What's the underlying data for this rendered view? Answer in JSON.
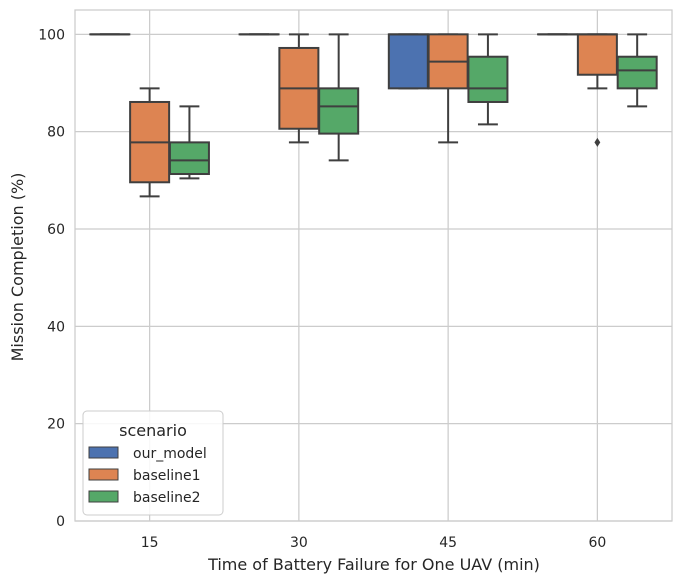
{
  "chart_data": {
    "type": "box",
    "xlabel": "Time of Battery Failure for One UAV (min)",
    "ylabel": "Mission Completion (%)",
    "categories": [
      "15",
      "30",
      "45",
      "60"
    ],
    "ylim": [
      0,
      105
    ],
    "yticks": [
      0,
      20,
      40,
      60,
      80,
      100
    ],
    "grid": true,
    "legend": {
      "title": "scenario",
      "position": "bottom-left"
    },
    "series": [
      {
        "name": "our_model",
        "color": "#4c72b0",
        "boxes": [
          {
            "whislo": 100,
            "q1": 100,
            "med": 100,
            "q3": 100,
            "whishi": 100,
            "fliers": []
          },
          {
            "whislo": 100,
            "q1": 100,
            "med": 100,
            "q3": 100,
            "whishi": 100,
            "fliers": []
          },
          {
            "whislo": 88.9,
            "q1": 88.9,
            "med": 100,
            "q3": 100,
            "whishi": 100,
            "fliers": []
          },
          {
            "whislo": 100,
            "q1": 100,
            "med": 100,
            "q3": 100,
            "whishi": 100,
            "fliers": []
          }
        ]
      },
      {
        "name": "baseline1",
        "color": "#dd8452",
        "boxes": [
          {
            "whislo": 66.7,
            "q1": 69.6,
            "med": 77.8,
            "q3": 86.1,
            "whishi": 88.9,
            "fliers": []
          },
          {
            "whislo": 77.8,
            "q1": 80.6,
            "med": 88.9,
            "q3": 97.2,
            "whishi": 100,
            "fliers": []
          },
          {
            "whislo": 77.8,
            "q1": 88.9,
            "med": 94.4,
            "q3": 100,
            "whishi": 100,
            "fliers": []
          },
          {
            "whislo": 88.9,
            "q1": 91.7,
            "med": 100,
            "q3": 100,
            "whishi": 100,
            "fliers": [
              77.8
            ]
          }
        ]
      },
      {
        "name": "baseline2",
        "color": "#55a868",
        "boxes": [
          {
            "whislo": 70.4,
            "q1": 71.3,
            "med": 74.1,
            "q3": 77.8,
            "whishi": 85.2,
            "fliers": []
          },
          {
            "whislo": 74.1,
            "q1": 79.6,
            "med": 85.2,
            "q3": 88.9,
            "whishi": 100,
            "fliers": []
          },
          {
            "whislo": 81.5,
            "q1": 86.1,
            "med": 88.9,
            "q3": 95.4,
            "whishi": 100,
            "fliers": []
          },
          {
            "whislo": 85.2,
            "q1": 88.9,
            "med": 92.6,
            "q3": 95.4,
            "whishi": 100,
            "fliers": []
          }
        ]
      }
    ]
  }
}
